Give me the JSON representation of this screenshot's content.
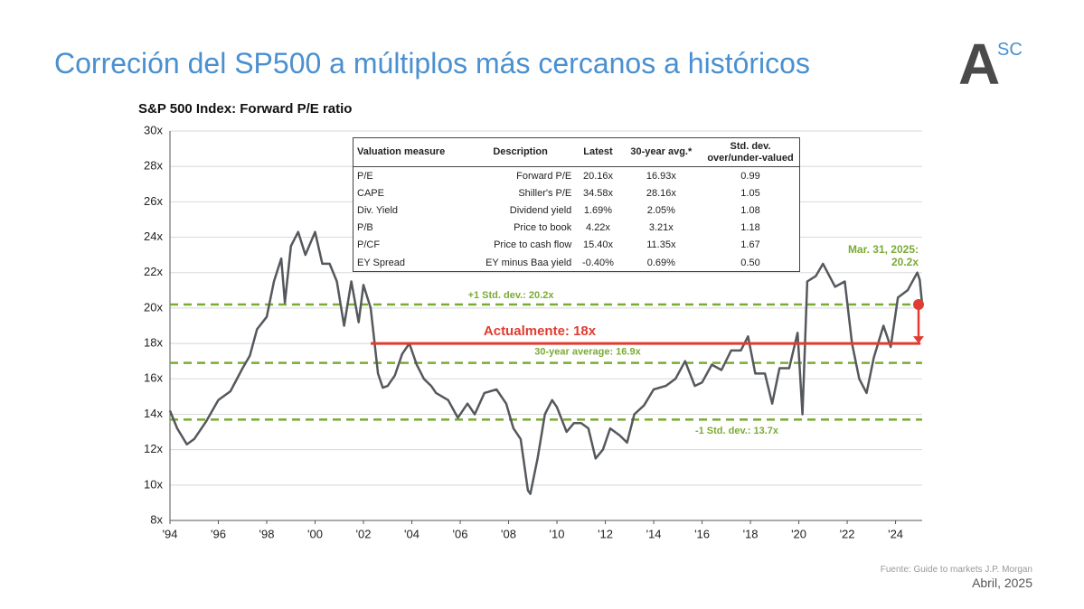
{
  "header": {
    "title": "Correción del SP500 a múltiplos más cercanos a históricos",
    "logo_main": "A",
    "logo_sup": "SC"
  },
  "chart_data": {
    "type": "line",
    "title": "S&P 500 Index: Forward P/E ratio",
    "series": [
      {
        "color": "#55585c",
        "x": [
          1994.0,
          1994.3,
          1994.7,
          1995.0,
          1995.5,
          1996.0,
          1996.5,
          1997.0,
          1997.3,
          1997.6,
          1998.0,
          1998.3,
          1998.6,
          1998.75,
          1999.0,
          1999.3,
          1999.6,
          2000.0,
          2000.3,
          2000.6,
          2000.9,
          2001.2,
          2001.5,
          2001.8,
          2002.0,
          2002.3,
          2002.6,
          2002.8,
          2003.0,
          2003.3,
          2003.6,
          2003.9,
          2004.2,
          2004.5,
          2004.8,
          2005.0,
          2005.5,
          2005.9,
          2006.3,
          2006.6,
          2007.0,
          2007.5,
          2007.9,
          2008.2,
          2008.5,
          2008.8,
          2008.9,
          2009.2,
          2009.5,
          2009.8,
          2010.0,
          2010.4,
          2010.7,
          2011.0,
          2011.3,
          2011.6,
          2011.9,
          2012.2,
          2012.6,
          2012.9,
          2013.2,
          2013.6,
          2014.0,
          2014.5,
          2014.9,
          2015.3,
          2015.7,
          2016.0,
          2016.4,
          2016.8,
          2017.2,
          2017.6,
          2017.9,
          2018.2,
          2018.6,
          2018.9,
          2019.2,
          2019.6,
          2019.95,
          2020.15,
          2020.35,
          2020.7,
          2021.0,
          2021.5,
          2021.9,
          2022.2,
          2022.5,
          2022.8,
          2023.1,
          2023.5,
          2023.8,
          2024.1,
          2024.5,
          2024.9,
          2025.0,
          2025.1
        ],
        "values": [
          14.2,
          13.2,
          12.3,
          12.6,
          13.6,
          14.8,
          15.3,
          16.6,
          17.3,
          18.8,
          19.5,
          21.5,
          22.8,
          20.3,
          23.5,
          24.3,
          23.0,
          24.3,
          22.5,
          22.5,
          21.5,
          19.0,
          21.5,
          19.2,
          21.3,
          20.0,
          16.3,
          15.5,
          15.6,
          16.2,
          17.4,
          18.0,
          16.8,
          16.0,
          15.6,
          15.2,
          14.8,
          13.8,
          14.6,
          14.0,
          15.2,
          15.4,
          14.6,
          13.2,
          12.6,
          9.7,
          9.5,
          11.5,
          14.0,
          14.8,
          14.4,
          13.0,
          13.5,
          13.5,
          13.2,
          11.5,
          12.0,
          13.2,
          12.8,
          12.4,
          14.0,
          14.5,
          15.4,
          15.6,
          16.0,
          17.0,
          15.6,
          15.8,
          16.8,
          16.5,
          17.6,
          17.6,
          18.4,
          16.3,
          16.3,
          14.6,
          16.6,
          16.6,
          18.6,
          14.0,
          21.5,
          21.8,
          22.5,
          21.2,
          21.5,
          18.0,
          16.0,
          15.2,
          17.2,
          19.0,
          17.8,
          20.6,
          21.0,
          22.0,
          21.6,
          20.2
        ]
      }
    ],
    "xlim": [
      1994,
      2025.1
    ],
    "xticks": [
      {
        "value": 1994,
        "label": "'94"
      },
      {
        "value": 1996,
        "label": "'96"
      },
      {
        "value": 1998,
        "label": "'98"
      },
      {
        "value": 2000,
        "label": "'00"
      },
      {
        "value": 2002,
        "label": "'02"
      },
      {
        "value": 2004,
        "label": "'04"
      },
      {
        "value": 2006,
        "label": "'06"
      },
      {
        "value": 2008,
        "label": "'08"
      },
      {
        "value": 2010,
        "label": "'10"
      },
      {
        "value": 2012,
        "label": "'12"
      },
      {
        "value": 2014,
        "label": "'14"
      },
      {
        "value": 2016,
        "label": "'16"
      },
      {
        "value": 2018,
        "label": "'18"
      },
      {
        "value": 2020,
        "label": "'20"
      },
      {
        "value": 2022,
        "label": "'22"
      },
      {
        "value": 2024,
        "label": "'24"
      }
    ],
    "ylim": [
      8,
      30
    ],
    "yticks": [
      {
        "value": 8,
        "label": "8x"
      },
      {
        "value": 10,
        "label": "10x"
      },
      {
        "value": 12,
        "label": "12x"
      },
      {
        "value": 14,
        "label": "14x"
      },
      {
        "value": 16,
        "label": "16x"
      },
      {
        "value": 18,
        "label": "18x"
      },
      {
        "value": 20,
        "label": "20x"
      },
      {
        "value": 22,
        "label": "22x"
      },
      {
        "value": 24,
        "label": "24x"
      },
      {
        "value": 26,
        "label": "26x"
      },
      {
        "value": 28,
        "label": "28x"
      },
      {
        "value": 30,
        "label": "30x"
      }
    ],
    "grid": true,
    "reference_lines": [
      {
        "label": "+1 Std. dev.: 20.2x",
        "value": 20.2,
        "color": "#7aab35"
      },
      {
        "label": "30-year average: 16.9x",
        "value": 16.9,
        "color": "#7aab35"
      },
      {
        "label": "-1 Std. dev.: 13.7x",
        "value": 13.7,
        "color": "#7aab35"
      }
    ],
    "current": {
      "label": "Actualmente: 18x",
      "value": 18,
      "x_start": 2002.3,
      "color": "#e03c31"
    },
    "marker": {
      "x": 2025.1,
      "y": 20.2,
      "color": "#e03c31",
      "label": [
        "Mar. 31, 2025:",
        "20.2x"
      ]
    }
  },
  "table": {
    "columns": [
      "Valuation measure",
      "Description",
      "Latest",
      "30-year avg.*",
      "Std. dev. over/under-valued"
    ],
    "rows": [
      [
        "P/E",
        "Forward P/E",
        "20.16x",
        "16.93x",
        "0.99"
      ],
      [
        "CAPE",
        "Shiller's P/E",
        "34.58x",
        "28.16x",
        "1.05"
      ],
      [
        "Div. Yield",
        "Dividend yield",
        "1.69%",
        "2.05%",
        "1.08"
      ],
      [
        "P/B",
        "Price to book",
        "4.22x",
        "3.21x",
        "1.18"
      ],
      [
        "P/CF",
        "Price to cash flow",
        "15.40x",
        "11.35x",
        "1.67"
      ],
      [
        "EY Spread",
        "EY minus Baa yield",
        "-0.40%",
        "0.69%",
        "0.50"
      ]
    ]
  },
  "footer": {
    "source": "Fuente: Guide to markets J.P. Morgan",
    "date": "Abril, 2025"
  }
}
